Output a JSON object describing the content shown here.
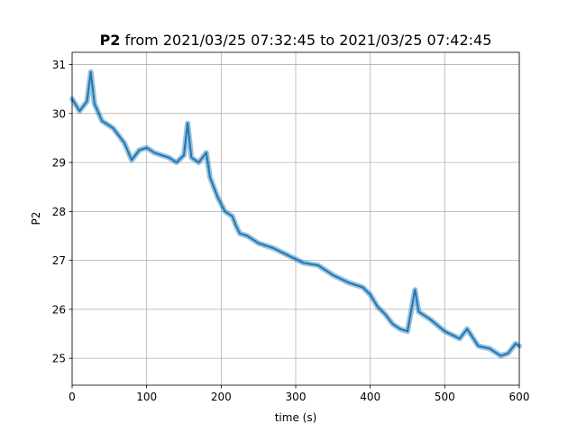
{
  "chart_data": {
    "type": "line",
    "title_var": "P2",
    "title_rest": " from 2021/03/25 07:32:45 to 2021/03/25 07:42:45",
    "xlabel": "time (s)",
    "ylabel": "P2",
    "xlim": [
      0,
      600
    ],
    "ylim": [
      24.45,
      31.25
    ],
    "xticks": [
      0,
      100,
      200,
      300,
      400,
      500,
      600
    ],
    "yticks": [
      25,
      26,
      27,
      28,
      29,
      30,
      31
    ],
    "grid": true,
    "line_color": "#1f77b4",
    "x": [
      0,
      10,
      20,
      25,
      30,
      40,
      55,
      70,
      80,
      90,
      100,
      110,
      120,
      130,
      140,
      150,
      155,
      160,
      170,
      180,
      185,
      195,
      205,
      215,
      220,
      225,
      235,
      250,
      270,
      290,
      310,
      330,
      350,
      370,
      390,
      400,
      410,
      420,
      430,
      440,
      450,
      460,
      465,
      480,
      500,
      520,
      530,
      545,
      560,
      575,
      585,
      595,
      600
    ],
    "y": [
      30.3,
      30.05,
      30.25,
      30.85,
      30.2,
      29.85,
      29.7,
      29.4,
      29.05,
      29.25,
      29.3,
      29.2,
      29.15,
      29.1,
      29.0,
      29.15,
      29.8,
      29.1,
      29.0,
      29.2,
      28.7,
      28.3,
      28.0,
      27.9,
      27.7,
      27.55,
      27.5,
      27.35,
      27.25,
      27.1,
      26.95,
      26.9,
      26.7,
      26.55,
      26.45,
      26.3,
      26.05,
      25.9,
      25.7,
      25.6,
      25.55,
      26.4,
      25.95,
      25.8,
      25.55,
      25.4,
      25.6,
      25.25,
      25.2,
      25.05,
      25.1,
      25.3,
      25.25
    ]
  }
}
